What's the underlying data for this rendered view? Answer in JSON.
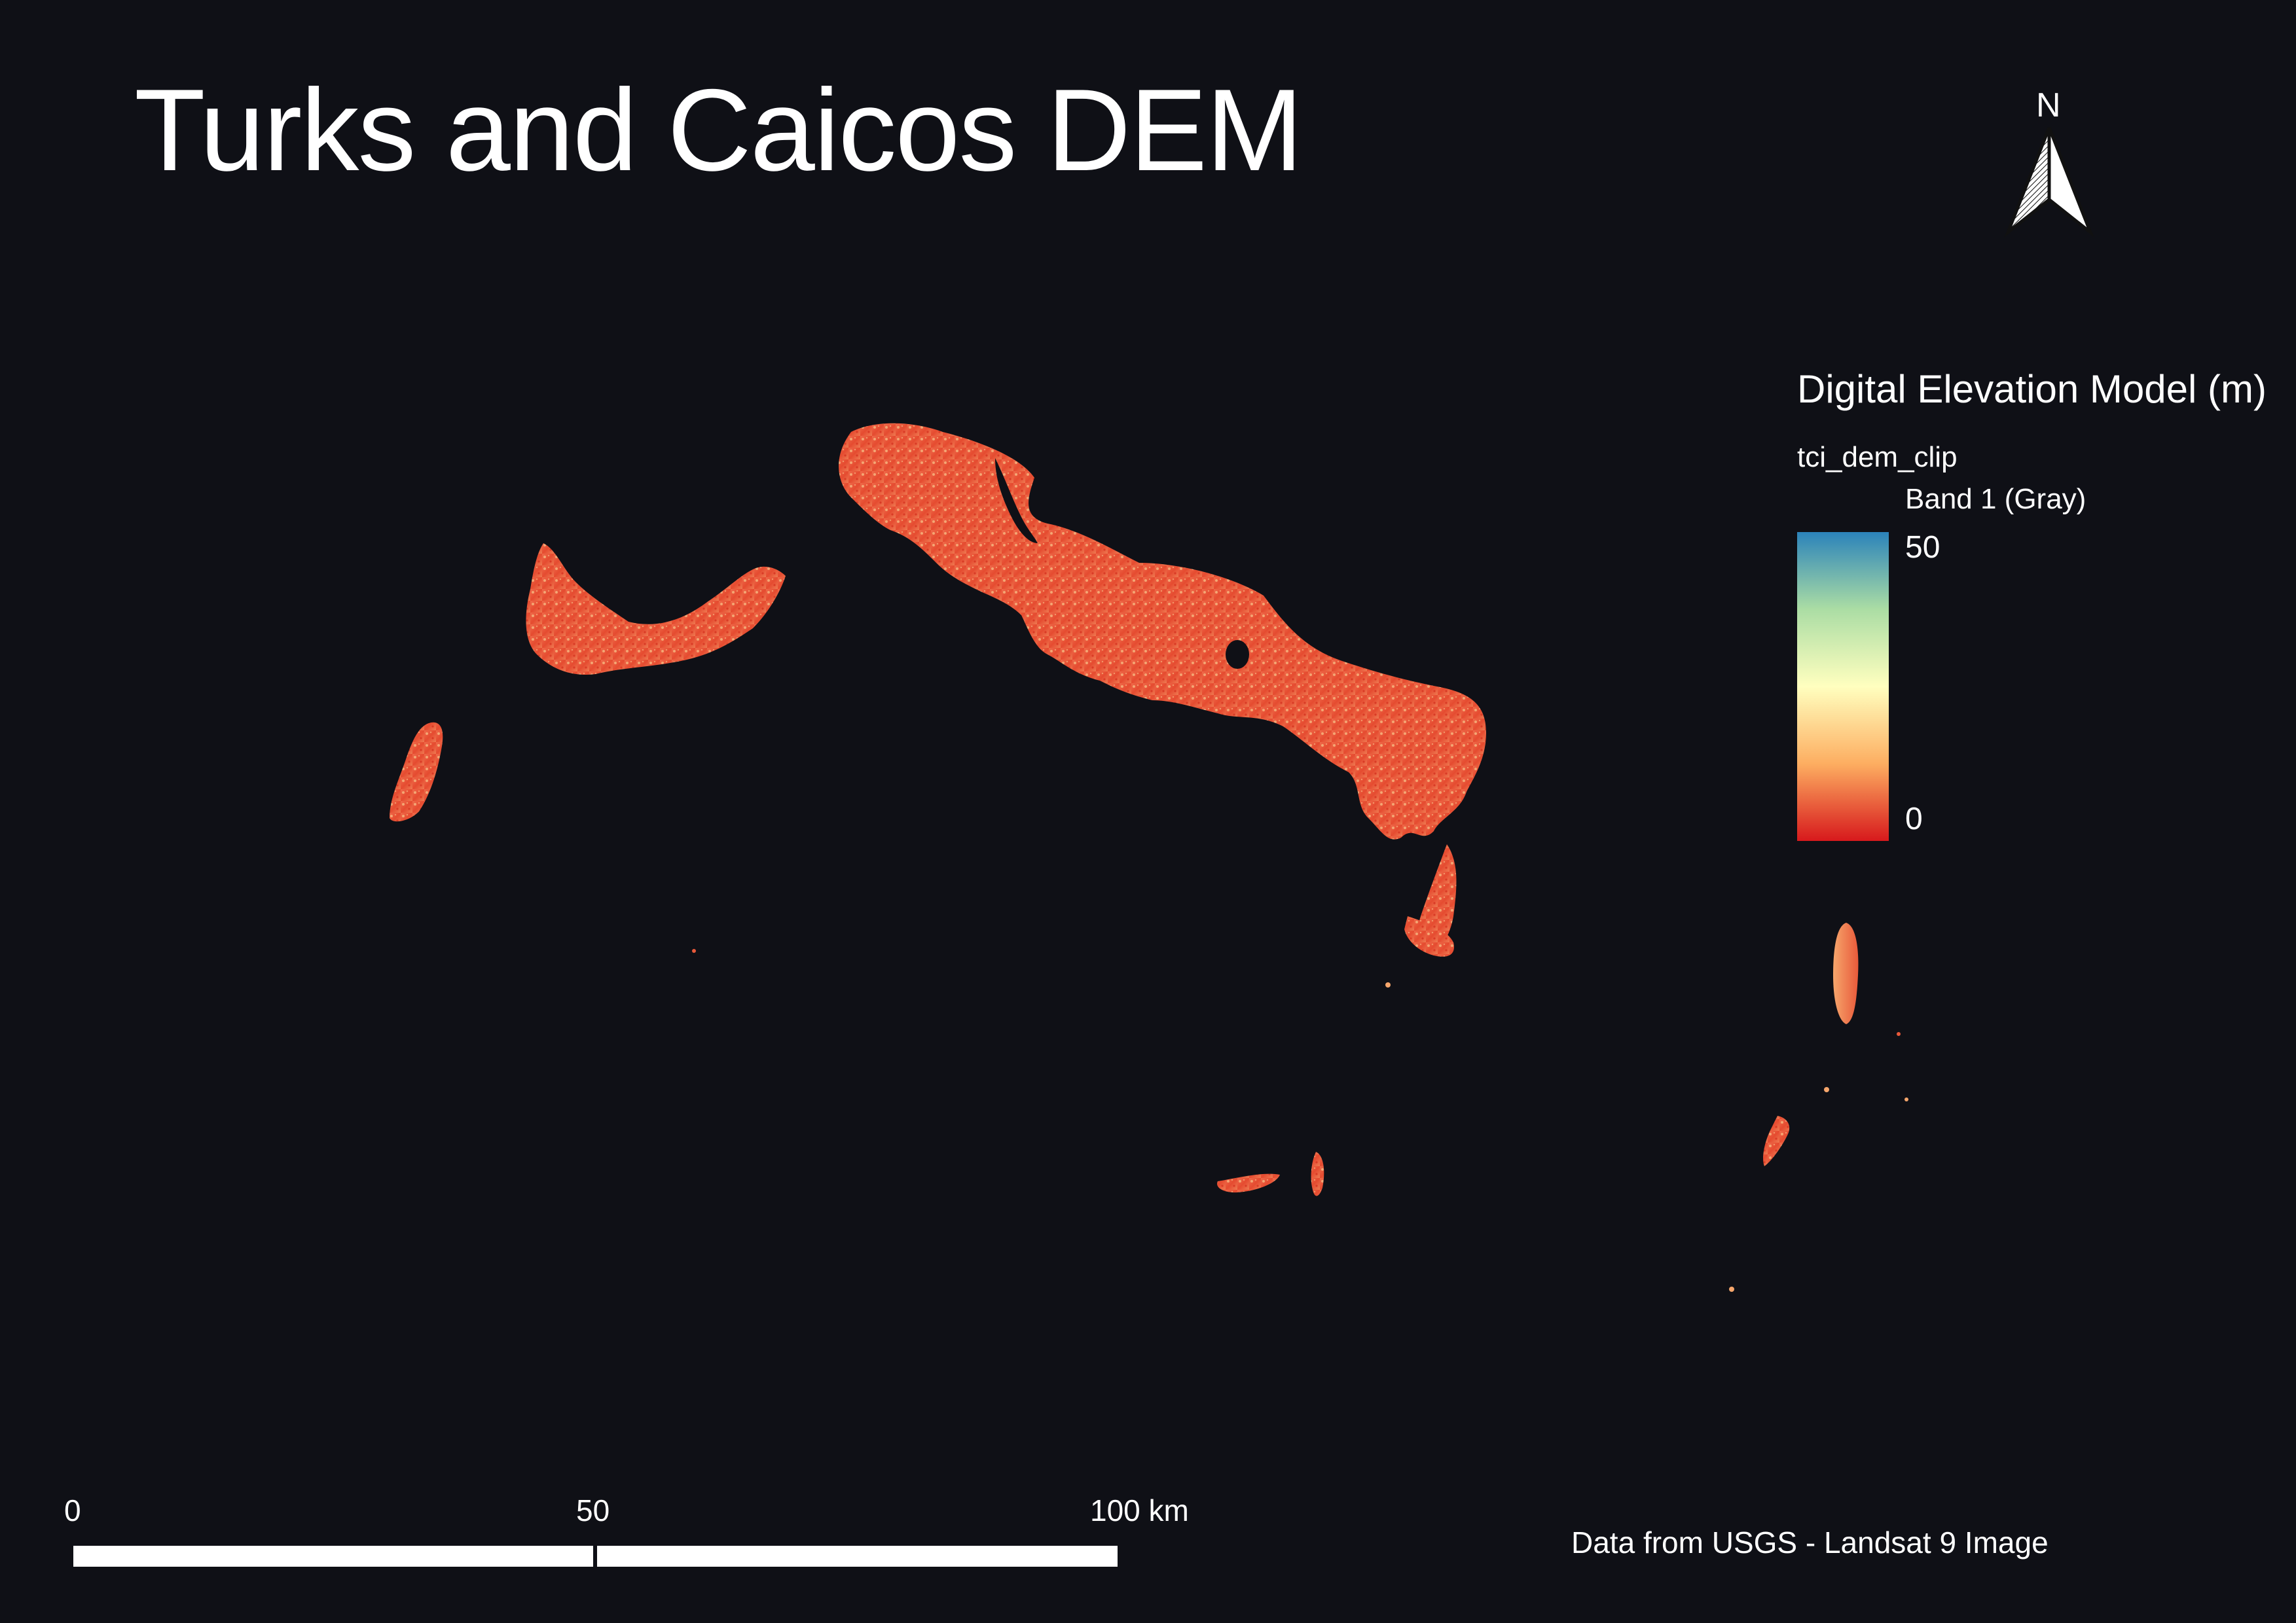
{
  "map": {
    "title": "Turks and Caicos DEM",
    "north_label": "N",
    "credit": "Data from USGS - Landsat 9 Image",
    "colors": {
      "background": "#0f1016",
      "low": "#d7191c",
      "mid_low": "#fdae61",
      "mid": "#ffffbf",
      "mid_high": "#abdda4",
      "high": "#2b83ba"
    }
  },
  "legend": {
    "title": "Digital Elevation Model (m)",
    "layer": "tci_dem_clip",
    "band": "Band 1 (Gray)",
    "max_label": "50",
    "min_label": "0"
  },
  "scale": {
    "ticks": [
      "0",
      "50",
      "100 km"
    ]
  }
}
